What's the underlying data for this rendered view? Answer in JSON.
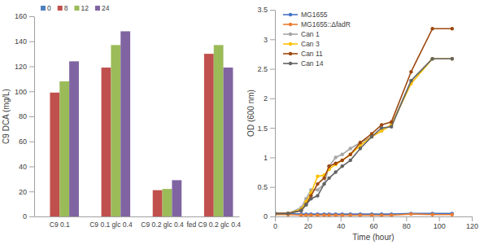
{
  "chart_data": [
    {
      "type": "bar",
      "ylabel": "C9 DCA (mg/L)",
      "categories": [
        "C9 0.1",
        "C9 0.1 glc 0.4",
        "C9 0.2 glc 0.4",
        "fed C9 0.2 glc 0.4"
      ],
      "series": [
        {
          "name": "0",
          "color": "#4f81bd",
          "values": [
            0,
            0,
            0,
            0
          ]
        },
        {
          "name": "8",
          "color": "#c0504d",
          "values": [
            99,
            119,
            21,
            130
          ]
        },
        {
          "name": "12",
          "color": "#9bbb59",
          "values": [
            108,
            137,
            22,
            137
          ]
        },
        {
          "name": "24",
          "color": "#8064a2",
          "values": [
            124,
            148,
            29,
            119
          ]
        }
      ],
      "ylim": [
        0,
        160
      ],
      "yticks": [
        0,
        20,
        40,
        60,
        80,
        100,
        120,
        140,
        160
      ],
      "legend": "top-left",
      "grid": false
    },
    {
      "type": "line",
      "xlabel": "Time (hour)",
      "ylabel": "OD (600 nm)",
      "x": [
        0,
        8,
        16,
        19,
        22,
        26,
        30,
        33,
        37,
        41,
        46,
        52,
        59,
        65,
        71,
        83,
        96,
        108
      ],
      "series": [
        {
          "name": "MG1655",
          "color": "#4472c4",
          "values": [
            0.05,
            0.05,
            0.04,
            0.04,
            0.04,
            0.04,
            0.04,
            0.04,
            0.04,
            0.04,
            0.04,
            0.04,
            0.04,
            0.04,
            0.04,
            0.05,
            0.05,
            0.05
          ]
        },
        {
          "name": "MG1655::ΔfadR",
          "color": "#ed7d31",
          "values": [
            0.03,
            0.03,
            0.02,
            0.02,
            0.02,
            0.02,
            0.02,
            0.02,
            0.02,
            0.02,
            0.02,
            0.02,
            0.02,
            0.02,
            0.02,
            0.04,
            0.03,
            0.03
          ]
        },
        {
          "name": "Can 1",
          "color": "#a5a5a5",
          "values": [
            0.05,
            0.05,
            0.15,
            0.3,
            0.45,
            0.45,
            0.55,
            0.85,
            1.0,
            1.05,
            1.15,
            1.25,
            1.35,
            1.45,
            1.55,
            2.3,
            2.67,
            2.67
          ]
        },
        {
          "name": "Can 3",
          "color": "#ffc000",
          "values": [
            0.05,
            0.05,
            0.12,
            0.25,
            0.4,
            0.68,
            0.7,
            0.8,
            0.88,
            0.95,
            1.05,
            1.2,
            1.35,
            1.45,
            1.55,
            2.25,
            2.67,
            2.67
          ]
        },
        {
          "name": "Can 11",
          "color": "#9e480e",
          "values": [
            0.05,
            0.05,
            0.1,
            0.2,
            0.35,
            0.55,
            0.65,
            0.85,
            0.9,
            0.95,
            1.05,
            1.25,
            1.4,
            1.55,
            1.6,
            2.45,
            3.18,
            3.18
          ]
        },
        {
          "name": "Can 14",
          "color": "#636363",
          "values": [
            0.05,
            0.05,
            0.1,
            0.2,
            0.3,
            0.35,
            0.55,
            0.65,
            0.75,
            0.85,
            0.95,
            1.15,
            1.35,
            1.5,
            1.52,
            2.3,
            2.67,
            2.67
          ]
        }
      ],
      "xlim": [
        0,
        120
      ],
      "xticks": [
        0,
        20,
        40,
        60,
        80,
        100,
        120
      ],
      "ylim": [
        0,
        3.5
      ],
      "yticks": [
        0,
        0.5,
        1,
        1.5,
        2,
        2.5,
        3,
        3.5
      ],
      "marker": "circle",
      "legend": "top-left",
      "grid": false
    }
  ]
}
